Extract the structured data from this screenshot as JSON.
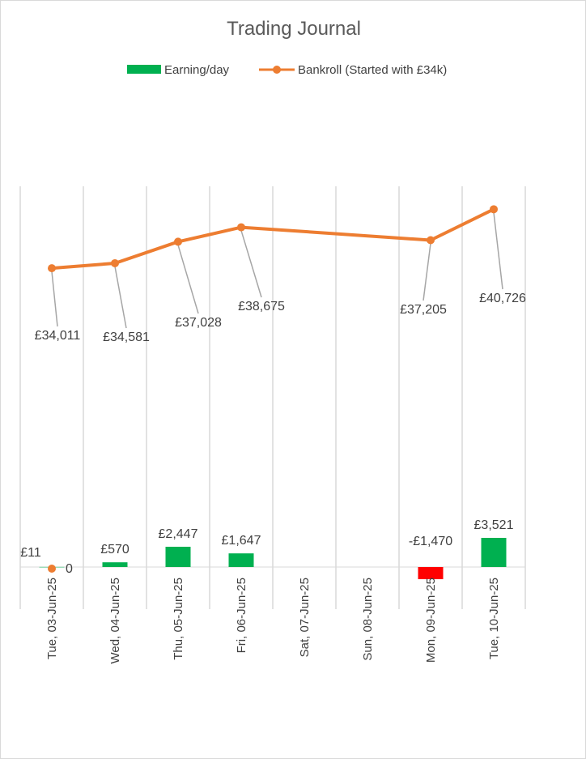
{
  "chart_data": {
    "type": "bar",
    "title": "Trading Journal",
    "categories": [
      "Tue, 03-Jun-25",
      "Wed, 04-Jun-25",
      "Thu, 05-Jun-25",
      "Fri, 06-Jun-25",
      "Sat, 07-Jun-25",
      "Sun, 08-Jun-25",
      "Mon, 09-Jun-25",
      "Tue, 10-Jun-25"
    ],
    "series": [
      {
        "name": "Earning/day",
        "kind": "bar",
        "values": [
          11,
          570,
          2447,
          1647,
          null,
          null,
          -1470,
          3521
        ],
        "labels": [
          "£11",
          "£570",
          "£2,447",
          "£1,647",
          "",
          "",
          "-£1,470",
          "£3,521"
        ],
        "color": "#00b050",
        "negative_color": "#ff0000"
      },
      {
        "name": "Bankroll (Started with £34k)",
        "kind": "line",
        "values": [
          34011,
          34581,
          37028,
          38675,
          null,
          null,
          37205,
          40726
        ],
        "labels": [
          "£34,011",
          "£34,581",
          "£37,028",
          "£38,675",
          "",
          "",
          "£37,205",
          "£40,726"
        ],
        "color": "#ed7d31"
      }
    ],
    "zero_label": "0",
    "legend_position": "top",
    "grid": "vertical"
  }
}
